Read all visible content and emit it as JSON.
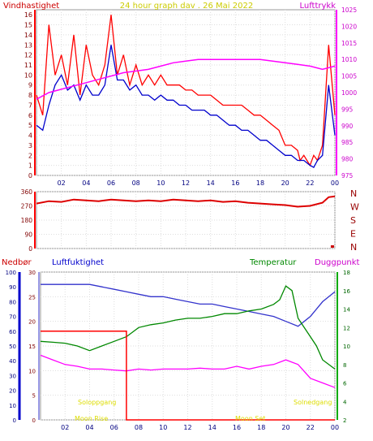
{
  "chart_data": [
    {
      "type": "line",
      "title": "24 hour graph dav . 26 Mai 2022",
      "left_label": "Vindhastighet",
      "right_label": "Lufttrykk",
      "x_ticks": [
        "02",
        "04",
        "06",
        "08",
        "10",
        "12",
        "14",
        "16",
        "18",
        "20",
        "22",
        "00"
      ],
      "y_left_ticks": [
        "0",
        "1",
        "2",
        "3",
        "4",
        "5",
        "6",
        "7",
        "8",
        "9",
        "10",
        "11",
        "12",
        "13",
        "14",
        "15",
        "16"
      ],
      "y_left_range": [
        0,
        16.5
      ],
      "y_right_ticks": [
        "975",
        "980",
        "985",
        "990",
        "995",
        "1000",
        "1005",
        "1010",
        "1015",
        "1020",
        "1025"
      ],
      "y_right_range": [
        975,
        1025
      ],
      "series": [
        {
          "name": "wind_gust",
          "color": "#ff0000",
          "axis": "left",
          "x": [
            0,
            0.5,
            1,
            1.5,
            2,
            2.5,
            3,
            3.5,
            4,
            4.5,
            5,
            5.5,
            6,
            6.5,
            7,
            7.5,
            8,
            8.5,
            9,
            9.5,
            10,
            10.5,
            11,
            11.5,
            12,
            12.5,
            13,
            13.5,
            14,
            14.5,
            15,
            15.5,
            16,
            16.5,
            17,
            17.5,
            18,
            18.5,
            19,
            19.5,
            20,
            20.5,
            21,
            21.2,
            21.5,
            22,
            22.3,
            22.6,
            23,
            23.5,
            24
          ],
          "y": [
            8,
            6,
            15,
            10,
            12,
            9,
            14,
            8,
            13,
            10,
            9,
            11,
            16,
            10,
            12,
            9,
            11,
            9,
            10,
            9,
            10,
            9,
            9,
            9,
            8.5,
            8.5,
            8,
            8,
            8,
            7.5,
            7,
            7,
            7,
            7,
            6.5,
            6,
            6,
            5.5,
            5,
            4.5,
            3,
            3,
            2.5,
            1.5,
            2,
            1,
            2,
            1.5,
            3,
            13,
            6
          ]
        },
        {
          "name": "wind_avg",
          "color": "#0000cc",
          "axis": "left",
          "x": [
            0,
            0.5,
            1,
            1.5,
            2,
            2.5,
            3,
            3.5,
            4,
            4.5,
            5,
            5.5,
            6,
            6.5,
            7,
            7.5,
            8,
            8.5,
            9,
            9.5,
            10,
            10.5,
            11,
            11.5,
            12,
            12.5,
            13,
            13.5,
            14,
            14.5,
            15,
            15.5,
            16,
            16.5,
            17,
            17.5,
            18,
            18.5,
            19,
            19.5,
            20,
            20.5,
            21,
            21.5,
            22,
            22.3,
            22.6,
            23,
            23.5,
            24
          ],
          "y": [
            5,
            4.5,
            7,
            9,
            10,
            8.5,
            9,
            7.5,
            9,
            8,
            8,
            9,
            13,
            9.5,
            9.5,
            8.5,
            9,
            8,
            8,
            7.5,
            8,
            7.5,
            7.5,
            7,
            7,
            6.5,
            6.5,
            6.5,
            6,
            6,
            5.5,
            5,
            5,
            4.5,
            4.5,
            4,
            3.5,
            3.5,
            3,
            2.5,
            2,
            2,
            1.5,
            1.5,
            1,
            0.8,
            1.5,
            2,
            9,
            4
          ]
        },
        {
          "name": "pressure",
          "color": "#ff00ff",
          "axis": "right",
          "x": [
            0,
            1,
            2,
            3,
            4,
            5,
            6,
            7,
            8,
            9,
            10,
            11,
            12,
            13,
            14,
            15,
            16,
            17,
            18,
            19,
            20,
            21,
            22,
            23,
            23.5,
            24
          ],
          "y": [
            998,
            1000,
            1001,
            1002,
            1003,
            1004,
            1005,
            1006,
            1006.5,
            1007,
            1008,
            1009,
            1009.5,
            1010,
            1010,
            1010,
            1010,
            1010,
            1010,
            1009.5,
            1009,
            1008.5,
            1008,
            1007,
            1007.5,
            1008
          ]
        }
      ]
    },
    {
      "type": "line",
      "y_left_ticks": [
        "360",
        "270",
        "180",
        "90",
        "0"
      ],
      "y_left_range": [
        0,
        360
      ],
      "right_letters": [
        "N",
        "W",
        "S",
        "E",
        "N"
      ],
      "series": [
        {
          "name": "wind_dir",
          "color": "#dd0000",
          "x": [
            0,
            1,
            2,
            3,
            4,
            5,
            6,
            7,
            8,
            9,
            10,
            11,
            12,
            13,
            14,
            15,
            16,
            17,
            18,
            19,
            20,
            21,
            22,
            23,
            23.5,
            24
          ],
          "y": [
            285,
            300,
            295,
            310,
            305,
            300,
            310,
            305,
            300,
            305,
            300,
            310,
            305,
            300,
            305,
            295,
            300,
            290,
            285,
            280,
            275,
            265,
            270,
            290,
            325,
            330
          ]
        }
      ],
      "markers": [
        {
          "x": 23.8,
          "y": 10
        }
      ]
    },
    {
      "type": "line",
      "left_label": "Nedbør",
      "humidity_label": "Luftfuktighet",
      "temp_label": "Temperatur",
      "dew_label": "Duggpunkt",
      "y_humidity_ticks": [
        "0",
        "10",
        "20",
        "30",
        "40",
        "50",
        "60",
        "70",
        "80",
        "90",
        "100"
      ],
      "y_rain_ticks": [
        "0",
        "5",
        "10",
        "15",
        "20",
        "25",
        "30"
      ],
      "y_rain_range": [
        0,
        30
      ],
      "y_temp_ticks": [
        "2",
        "4",
        "6",
        "8",
        "10",
        "12",
        "14",
        "16",
        "18"
      ],
      "y_temp_range": [
        2,
        18
      ],
      "annotations": [
        "Soloppgang",
        "Moon Rise",
        "Moon Set",
        "Solnedgang"
      ],
      "series": [
        {
          "name": "humidity",
          "color": "#3333cc",
          "axis": "rain",
          "x": [
            0,
            1,
            2,
            3,
            4,
            5,
            6,
            7,
            8,
            9,
            10,
            11,
            12,
            13,
            14,
            15,
            16,
            17,
            18,
            19,
            20,
            21,
            22,
            23,
            24
          ],
          "y": [
            27.5,
            27.5,
            27.5,
            27.5,
            27.5,
            27,
            26.5,
            26,
            25.5,
            25,
            25,
            24.5,
            24,
            23.5,
            23.5,
            23,
            22.5,
            22,
            21.5,
            21,
            20,
            19,
            21,
            24,
            26
          ]
        },
        {
          "name": "temperature",
          "color": "#008800",
          "axis": "temp",
          "x": [
            0,
            1,
            2,
            3,
            4,
            5,
            6,
            7,
            8,
            9,
            10,
            11,
            12,
            13,
            14,
            15,
            16,
            17,
            18,
            19,
            19.5,
            20,
            20.5,
            21,
            22,
            22.5,
            23,
            24
          ],
          "y": [
            10.5,
            10.4,
            10.3,
            10,
            9.5,
            10,
            10.5,
            11,
            12,
            12.3,
            12.5,
            12.8,
            13,
            13,
            13.2,
            13.5,
            13.5,
            13.8,
            14,
            14.5,
            15,
            16.5,
            16,
            13,
            11,
            10,
            8.5,
            7.5
          ]
        },
        {
          "name": "dewpoint",
          "color": "#ff00ff",
          "axis": "temp",
          "x": [
            0,
            1,
            2,
            3,
            4,
            5,
            6,
            7,
            8,
            9,
            10,
            11,
            12,
            13,
            14,
            15,
            16,
            17,
            18,
            19,
            20,
            21,
            22,
            23,
            24
          ],
          "y": [
            9,
            8.5,
            8,
            7.8,
            7.5,
            7.5,
            7.4,
            7.3,
            7.5,
            7.4,
            7.5,
            7.5,
            7.5,
            7.6,
            7.5,
            7.5,
            7.8,
            7.5,
            7.8,
            8,
            8.5,
            8,
            6.5,
            6,
            5.5
          ]
        },
        {
          "name": "rain",
          "color": "#ff0000",
          "axis": "rain",
          "step": true,
          "x": [
            0,
            7,
            7,
            24
          ],
          "y": [
            18,
            18,
            0,
            0
          ]
        }
      ]
    }
  ]
}
